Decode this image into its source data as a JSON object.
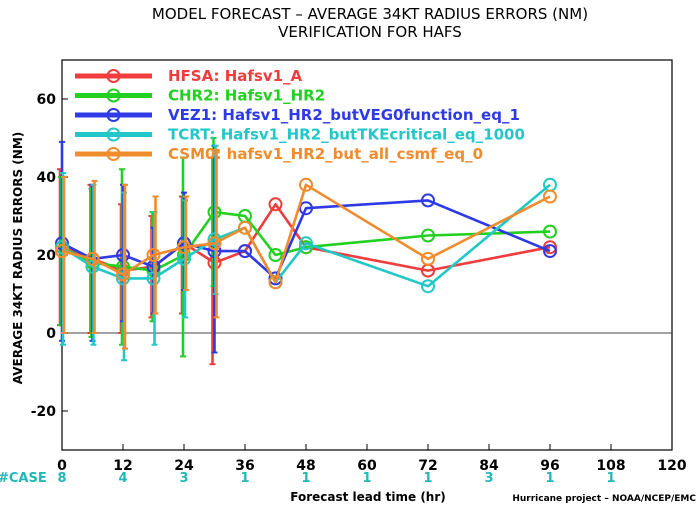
{
  "chart_data": {
    "type": "line",
    "title": "MODEL FORECAST – AVERAGE 34KT RADIUS ERRORS (NM)",
    "subtitle": "VERIFICATION FOR HAFS",
    "xlabel": "Forecast lead time (hr)",
    "ylabel": "AVERAGE 34KT RADIUS ERRORS (NM)",
    "xlim": [
      0,
      120
    ],
    "ylim": [
      -30,
      70
    ],
    "xticks": [
      0,
      12,
      24,
      36,
      48,
      60,
      72,
      84,
      96,
      108,
      120
    ],
    "yticks": [
      -20,
      0,
      20,
      40,
      60
    ],
    "zero_line": true,
    "legend_position": "top-left",
    "case_label": "#CASE",
    "cases": [
      {
        "x": 0,
        "n": "8"
      },
      {
        "x": 12,
        "n": "4"
      },
      {
        "x": 24,
        "n": "3"
      },
      {
        "x": 36,
        "n": "1"
      },
      {
        "x": 48,
        "n": "1"
      },
      {
        "x": 60,
        "n": "1"
      },
      {
        "x": 72,
        "n": "1"
      },
      {
        "x": 84,
        "n": "3"
      },
      {
        "x": 96,
        "n": "1"
      },
      {
        "x": 108,
        "n": "1"
      }
    ],
    "credit": "Hurricane project – NOAA/NCEP/EMC",
    "series": [
      {
        "name": "HFSA: Hafsv1_A",
        "color": "#f03c3c",
        "x": [
          0,
          6,
          12,
          18,
          24,
          30,
          36,
          42,
          48,
          72,
          96
        ],
        "y": [
          22,
          19,
          16,
          17,
          23,
          18,
          21,
          33,
          22,
          16,
          22
        ],
        "err": [
          [
            2,
            42
          ],
          [
            0,
            38
          ],
          [
            0,
            33
          ],
          [
            4,
            30
          ],
          [
            5,
            35
          ],
          [
            -8,
            45
          ]
        ]
      },
      {
        "name": "CHR2: Hafsv1_HR2",
        "color": "#22d022",
        "x": [
          0,
          6,
          12,
          18,
          24,
          30,
          36,
          42,
          48,
          72,
          96
        ],
        "y": [
          22,
          18,
          17,
          16,
          20,
          31,
          30,
          20,
          22,
          25,
          26
        ],
        "err": [
          [
            2,
            40
          ],
          [
            -1,
            37
          ],
          [
            -3,
            42
          ],
          [
            3,
            31
          ],
          [
            -6,
            45
          ],
          [
            12,
            50
          ]
        ]
      },
      {
        "name": "VEZ1: Hafsv1_HR2_butVEG0function_eq_1",
        "color": "#2e3ae6",
        "x": [
          0,
          6,
          12,
          18,
          24,
          30,
          36,
          42,
          48,
          72,
          96
        ],
        "y": [
          23,
          19,
          20,
          17,
          23,
          21,
          21,
          14,
          32,
          34,
          21
        ],
        "err": [
          [
            -2,
            49
          ],
          [
            -2,
            38
          ],
          [
            3,
            38
          ],
          [
            5,
            27
          ],
          [
            11,
            36
          ],
          [
            -5,
            48
          ]
        ]
      },
      {
        "name": "TCRT: Hafsv1_HR2_butTKEcritical_eq_1000",
        "color": "#22c8c8",
        "x": [
          0,
          6,
          12,
          18,
          24,
          30,
          36,
          42,
          48,
          72,
          96
        ],
        "y": [
          22,
          17,
          14,
          14,
          19,
          24,
          27,
          13,
          23,
          12,
          38
        ],
        "err": [
          [
            -3,
            41
          ],
          [
            -3,
            38
          ],
          [
            -7,
            36
          ],
          [
            -3,
            31
          ],
          [
            4,
            34
          ],
          [
            10,
            48
          ]
        ]
      },
      {
        "name": "CSM0: hafsv1_HR2_but_all_csmf_eq_0",
        "color": "#f08c2c",
        "x": [
          0,
          6,
          12,
          18,
          24,
          30,
          36,
          42,
          48,
          72,
          96
        ],
        "y": [
          21,
          19,
          15,
          20,
          22,
          23,
          27,
          13,
          38,
          19,
          35
        ],
        "err": [
          [
            0,
            40
          ],
          [
            0,
            39
          ],
          [
            -4,
            38
          ],
          [
            5,
            35
          ],
          [
            11,
            35
          ],
          [
            4,
            47
          ]
        ]
      }
    ]
  }
}
